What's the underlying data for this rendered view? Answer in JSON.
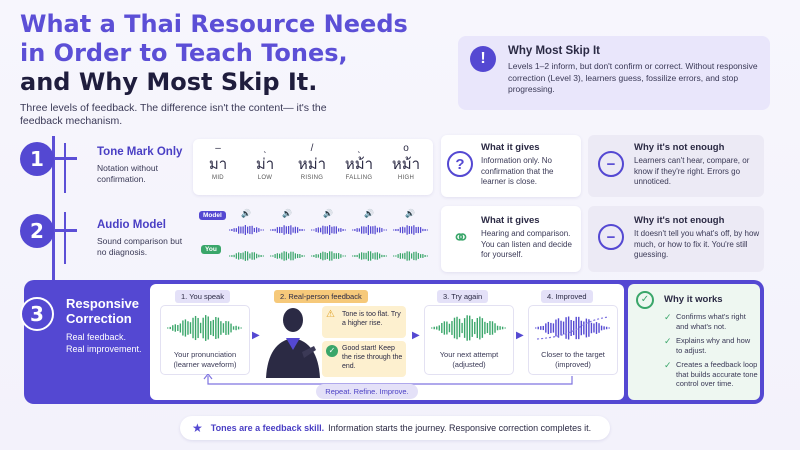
{
  "title": {
    "line1": "What a Thai Resource Needs",
    "line2": "in Order to Teach Tones,",
    "line3": "and Why Most Skip It."
  },
  "subtitle": "Three levels of feedback. The difference isn't the content— it's the feedback mechanism.",
  "skip_card": {
    "icon": "!",
    "title": "Why Most Skip It",
    "text": "Levels 1–2 inform, but don't confirm or correct. Without responsive correction (Level 3), learners guess, fossilize errors, and stop progressing."
  },
  "levels": [
    {
      "number": "1",
      "title": "Tone Mark Only",
      "desc": "Notation without confirmation.",
      "tones": [
        {
          "mark": "–",
          "thai": "มา",
          "label": "MID"
        },
        {
          "mark": "ˎ",
          "thai": "ม่า",
          "label": "LOW"
        },
        {
          "mark": "/",
          "thai": "หม่า",
          "label": "RISING"
        },
        {
          "mark": "ˎ",
          "thai": "หม้า",
          "label": "FALLING"
        },
        {
          "mark": "o",
          "thai": "หม้า",
          "label": "HIGH"
        }
      ],
      "gives_title": "What it gives",
      "gives_text": "Information only. No confirmation that the learner is close.",
      "gives_icon": "question-icon",
      "not_enough_title": "Why it's not enough",
      "not_enough_text": "Learners can't hear, compare, or know if they're right. Errors go unnoticed."
    },
    {
      "number": "2",
      "title": "Audio Model",
      "desc": "Sound comparison but no diagnosis.",
      "row_labels": {
        "model": "Model",
        "you": "You"
      },
      "gives_title": "What it gives",
      "gives_text": "Hearing and comparison. You can listen and decide for yourself.",
      "gives_icon": "ear-icon",
      "not_enough_title": "Why it's not enough",
      "not_enough_text": "It doesn't tell you what's off, by how much, or how to fix it. You're still guessing."
    }
  ],
  "level3": {
    "number": "3",
    "title": "Responsive Correction",
    "desc": "Real feedback. Real improvement.",
    "steps": [
      {
        "label": "1. You speak",
        "caption": "Your pronunciation (learner waveform)"
      },
      {
        "label": "2. Real-person feedback",
        "bubble1": "Tone is too flat. Try a higher rise.",
        "bubble2": "Good start! Keep the rise through the end."
      },
      {
        "label": "3. Try again",
        "caption": "Your next attempt (adjusted)"
      },
      {
        "label": "4. Improved",
        "caption": "Closer to the target (improved)"
      }
    ],
    "repeat": "Repeat. Refine. Improve.",
    "works_title": "Why it works",
    "works_items": [
      "Confirms what's right and what's not.",
      "Explains why and how to adjust.",
      "Creates a feedback loop that builds accurate tone control over time."
    ]
  },
  "footer": {
    "bold": "Tones are a feedback skill.",
    "rest": "Information starts the journey. Responsive correction completes it."
  },
  "colors": {
    "accent": "#5448d2",
    "title": "#5c4fd6",
    "orange": "#f6c97a",
    "green": "#3aa66a"
  }
}
